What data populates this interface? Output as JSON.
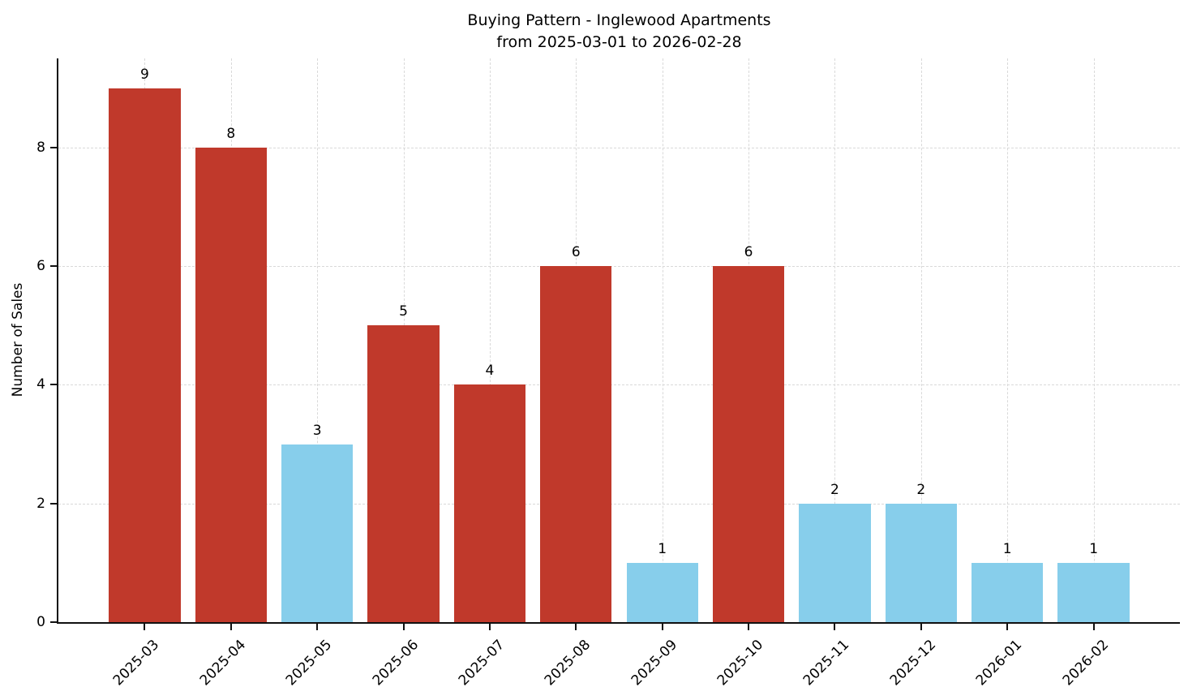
{
  "title": {
    "line1": "Buying Pattern - Inglewood Apartments",
    "line2": "from 2025-03-01 to 2026-02-28"
  },
  "colors": {
    "bar_red": "#c0392b",
    "bar_blue": "#87ceeb",
    "grid": "#d9d9d9",
    "axis": "#111111",
    "text": "#000000"
  },
  "chart_data": {
    "type": "bar",
    "title": "Buying Pattern - Inglewood Apartments from 2025-03-01 to 2026-02-28",
    "xlabel": "",
    "ylabel": "Number of Sales",
    "categories": [
      "2025-03",
      "2025-04",
      "2025-05",
      "2025-06",
      "2025-07",
      "2025-08",
      "2025-09",
      "2025-10",
      "2025-11",
      "2025-12",
      "2026-01",
      "2026-02"
    ],
    "values": [
      9,
      8,
      3,
      5,
      4,
      6,
      1,
      6,
      2,
      2,
      1,
      1
    ],
    "bar_colors": [
      "#c0392b",
      "#c0392b",
      "#87ceeb",
      "#c0392b",
      "#c0392b",
      "#c0392b",
      "#87ceeb",
      "#c0392b",
      "#87ceeb",
      "#87ceeb",
      "#87ceeb",
      "#87ceeb"
    ],
    "value_labels": [
      9,
      8,
      3,
      5,
      4,
      6,
      1,
      6,
      2,
      2,
      1,
      1
    ],
    "ylim": [
      0,
      9.5
    ],
    "yticks": [
      0,
      2,
      4,
      6,
      8
    ],
    "grid": "dashed, horizontal and vertical",
    "legend": "none",
    "x_tick_rotation": 45
  }
}
